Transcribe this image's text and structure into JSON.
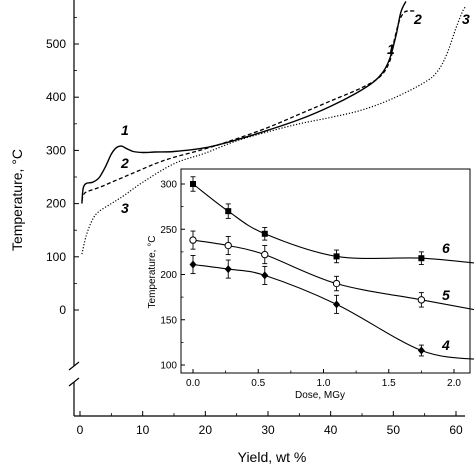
{
  "chart_data": [
    {
      "type": "line",
      "xlabel": "Yield, wt %",
      "ylabel": "Temperature, °C",
      "xlim": [
        -1,
        62
      ],
      "ylim": [
        -200,
        590
      ],
      "y_axis_break_below": 0,
      "xticks": [
        "0",
        "10",
        "20",
        "30",
        "40",
        "50",
        "60"
      ],
      "yticks": [
        "0",
        "100",
        "200",
        "300",
        "400",
        "500"
      ],
      "series": [
        {
          "name": "1",
          "style": "solid",
          "x": [
            0.3,
            0.5,
            1,
            2,
            3,
            4,
            5,
            5.8,
            6.6,
            7.5,
            8.5,
            10,
            12,
            15,
            20,
            25,
            30,
            35,
            40,
            44,
            47,
            48.5,
            49.5,
            50.5,
            51.2,
            52
          ],
          "y": [
            200,
            228,
            238,
            240,
            248,
            268,
            293,
            305,
            308,
            303,
            298,
            296,
            297,
            298,
            305,
            320,
            338,
            358,
            383,
            407,
            430,
            450,
            475,
            520,
            560,
            580
          ]
        },
        {
          "name": "2",
          "style": "dashed",
          "x": [
            0.3,
            0.5,
            1,
            3,
            5,
            7,
            9,
            12,
            15,
            20,
            25,
            30,
            35,
            40,
            45,
            48,
            49.5,
            50.2,
            51,
            51.8,
            52.5,
            53.5
          ],
          "y": [
            205,
            215,
            222,
            230,
            240,
            250,
            260,
            275,
            287,
            303,
            322,
            343,
            368,
            393,
            418,
            440,
            470,
            510,
            545,
            560,
            562,
            562
          ]
        },
        {
          "name": "3",
          "style": "dotted",
          "x": [
            0.3,
            1,
            2,
            3,
            5,
            7,
            10,
            15,
            20,
            25,
            30,
            35,
            40,
            45,
            50,
            55,
            57,
            58.5,
            60,
            61,
            61.5
          ],
          "y": [
            105,
            140,
            170,
            185,
            200,
            215,
            240,
            275,
            295,
            318,
            335,
            350,
            362,
            376,
            398,
            428,
            448,
            480,
            530,
            560,
            570
          ]
        }
      ]
    },
    {
      "type": "line",
      "inset": true,
      "xlabel": "Dose, MGy",
      "ylabel": "Temperature, °C",
      "xlim": [
        -0.1,
        2.25
      ],
      "ylim": [
        95,
        315
      ],
      "xticks": [
        "0.0",
        "0.5",
        "1.0",
        "1.5",
        "2.0"
      ],
      "yticks": [
        "100",
        "150",
        "200",
        "250",
        "300"
      ],
      "series": [
        {
          "name": "6",
          "marker": "filled-square",
          "x": [
            0,
            0.27,
            0.55,
            1.1,
            1.75,
            2.2
          ],
          "y": [
            300,
            270,
            245,
            220,
            218,
            212
          ],
          "err": [
            8,
            8,
            7,
            7,
            7,
            7
          ]
        },
        {
          "name": "5",
          "marker": "open-circle",
          "x": [
            0,
            0.27,
            0.55,
            1.1,
            1.75,
            2.2
          ],
          "y": [
            238,
            232,
            222,
            190,
            172,
            160
          ],
          "err": [
            10,
            10,
            10,
            8,
            8,
            8
          ]
        },
        {
          "name": "4",
          "marker": "filled-diamond",
          "x": [
            0,
            0.27,
            0.55,
            1.1,
            1.75,
            2.2
          ],
          "y": [
            211,
            206,
            199,
            167,
            116,
            106
          ],
          "err": [
            10,
            10,
            10,
            10,
            6,
            5
          ]
        }
      ]
    }
  ]
}
